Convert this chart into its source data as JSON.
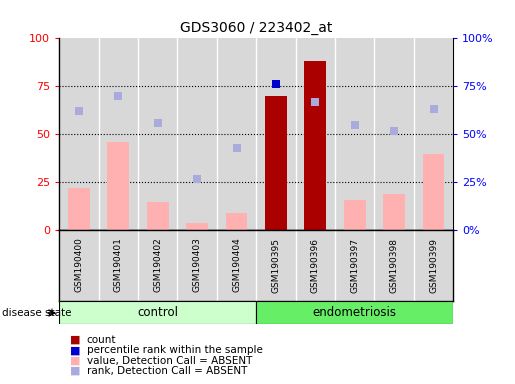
{
  "title": "GDS3060 / 223402_at",
  "samples": [
    "GSM190400",
    "GSM190401",
    "GSM190402",
    "GSM190403",
    "GSM190404",
    "GSM190395",
    "GSM190396",
    "GSM190397",
    "GSM190398",
    "GSM190399"
  ],
  "groups": [
    "control",
    "control",
    "control",
    "control",
    "control",
    "endometriosis",
    "endometriosis",
    "endometriosis",
    "endometriosis",
    "endometriosis"
  ],
  "value_bars": [
    22,
    46,
    15,
    4,
    9,
    70,
    88,
    16,
    19,
    40
  ],
  "rank_dots": [
    62,
    70,
    56,
    27,
    43,
    76,
    67,
    55,
    52,
    63
  ],
  "percentile_rank_dot_index": 5,
  "percentile_rank_dot_value": 76,
  "bar_color_normal": "#FFB0B0",
  "bar_color_highlight": "#AA0000",
  "dot_color_absent": "#AAAADD",
  "dot_color_percentile": "#0000CC",
  "highlight_indices": [
    5,
    6
  ],
  "ylim": [
    0,
    100
  ],
  "yticks": [
    0,
    25,
    50,
    75,
    100
  ],
  "control_color": "#CCFFCC",
  "endo_color": "#66EE66",
  "bg_color": "#D8D8D8",
  "legend_labels": [
    "count",
    "percentile rank within the sample",
    "value, Detection Call = ABSENT",
    "rank, Detection Call = ABSENT"
  ],
  "legend_colors": [
    "#AA0000",
    "#0000CC",
    "#FFB0B0",
    "#AAAADD"
  ]
}
